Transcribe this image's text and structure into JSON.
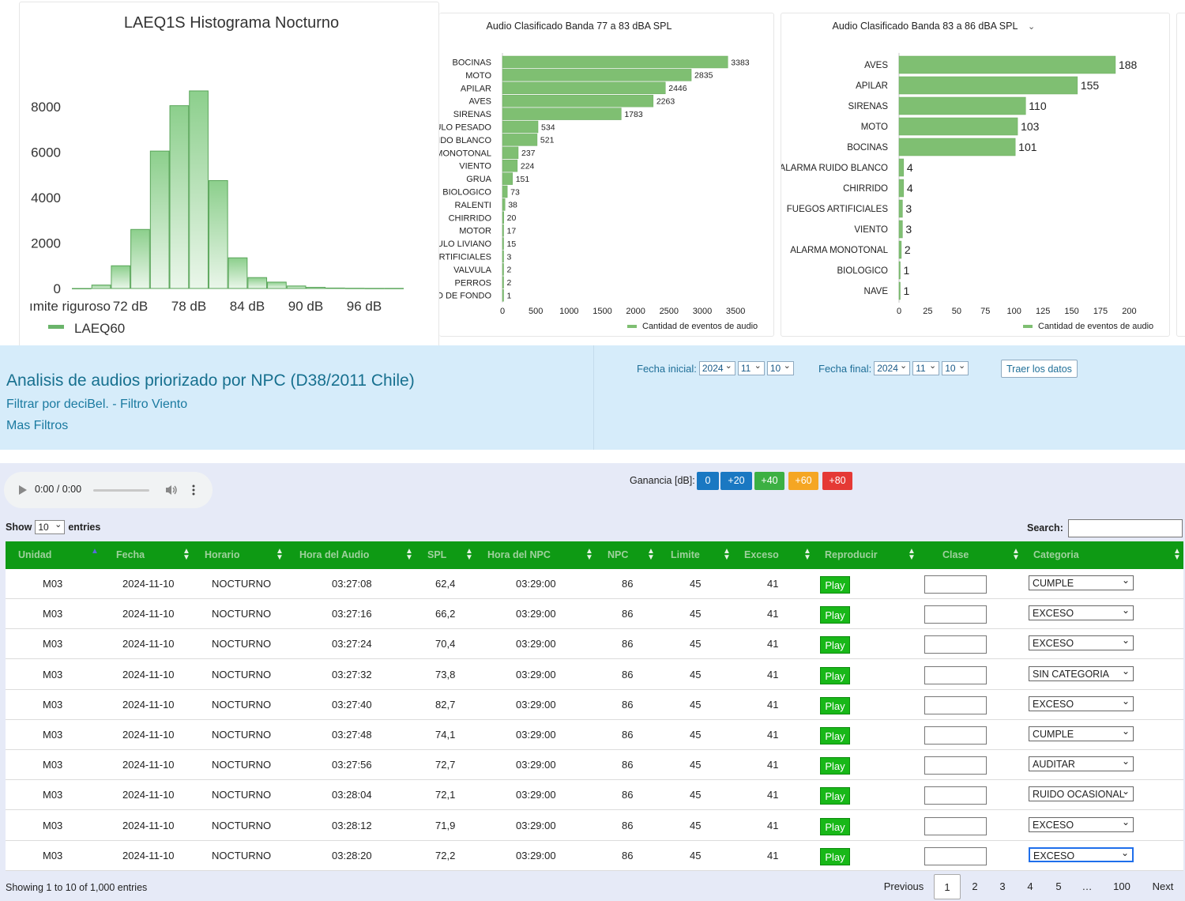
{
  "histogram": {
    "title": "LAEQ1S Histograma Nocturno",
    "legend": "LAEQ60",
    "legend_color": "#6ab46a",
    "y_ticks": [
      "0",
      "2000",
      "4000",
      "6000",
      "8000"
    ],
    "x_ticks": [
      "ımite riguroso",
      "72 dB",
      "78 dB",
      "84 dB",
      "90 dB",
      "96 dB"
    ]
  },
  "band77": {
    "title": "Audio Clasificado Banda 77 a 83 dBA SPL",
    "legend": "Cantidad de eventos de audio",
    "x_ticks": [
      "0",
      "500",
      "1000",
      "1500",
      "2000",
      "2500",
      "3000",
      "3500"
    ]
  },
  "band83": {
    "title": "Audio Clasificado Banda 83 a 86 dBA SPL",
    "legend": "Cantidad de eventos de audio",
    "x_ticks": [
      "0",
      "25",
      "50",
      "75",
      "100",
      "125",
      "150",
      "175",
      "200"
    ]
  },
  "chart_data": [
    {
      "type": "bar",
      "title": "LAEQ1S Histograma Nocturno",
      "series": [
        {
          "name": "LAEQ60",
          "values": [
            0,
            150,
            1000,
            2600,
            6050,
            8050,
            8700,
            4750,
            1350,
            480,
            280,
            110,
            50,
            20,
            10,
            5,
            5
          ]
        }
      ],
      "ylim": [
        0,
        8700
      ],
      "x_ticks": [
        "ımite riguroso",
        "72 dB",
        "78 dB",
        "84 dB",
        "90 dB",
        "96 dB"
      ]
    },
    {
      "type": "bar",
      "title": "Audio Clasificado Banda 77 a 83 dBA SPL",
      "categories": [
        "BOCINAS",
        "MOTO",
        "APILAR",
        "AVES",
        "SIRENAS",
        "ULO PESADO",
        "IIDO BLANCO",
        "MONOTONAL",
        "VIENTO",
        "GRUA",
        "BIOLOGICO",
        "RALENTI",
        "CHIRRIDO",
        "MOTOR",
        "ULO LIVIANO",
        "ARTIFICIALES",
        "VALVULA",
        "PERROS",
        "O DE FONDO"
      ],
      "values": [
        3383,
        2835,
        2446,
        2263,
        1783,
        534,
        521,
        237,
        224,
        151,
        73,
        38,
        20,
        17,
        15,
        3,
        2,
        2,
        1
      ],
      "xlim": [
        0,
        3700
      ],
      "legend": "Cantidad de eventos de audio"
    },
    {
      "type": "bar",
      "title": "Audio Clasificado Banda 83 a 86 dBA SPL",
      "categories": [
        "AVES",
        "APILAR",
        "SIRENAS",
        "MOTO",
        "BOCINAS",
        "ALARMA RUIDO BLANCO",
        "CHIRRIDO",
        "FUEGOS ARTIFICIALES",
        "VIENTO",
        "ALARMA MONOTONAL",
        "BIOLOGICO",
        "NAVE"
      ],
      "values": [
        188,
        155,
        110,
        103,
        101,
        4,
        4,
        3,
        3,
        2,
        1,
        1
      ],
      "xlim": [
        0,
        210
      ],
      "legend": "Cantidad de eventos de audio"
    }
  ],
  "info": {
    "title": "Analisis de audios priorizado por NPC (D38/2011 Chile)",
    "filter_link": "Filtrar por deciBel. - Filtro Viento",
    "more_filters": "Mas Filtros",
    "fecha_inicial_label": "Fecha inicial:",
    "fecha_final_label": "Fecha final:",
    "start": {
      "year": "2024",
      "month": "11",
      "day": "10"
    },
    "end": {
      "year": "2024",
      "month": "11",
      "day": "10"
    },
    "traer_label": "Traer los datos"
  },
  "player": {
    "time": "0:00 / 0:00"
  },
  "gain": {
    "label": "Ganancia [dB]:",
    "buttons": [
      "0",
      "+20",
      "+40",
      "+60",
      "+80"
    ],
    "colors": [
      "#1a78c2",
      "#1a78c2",
      "#3cb043",
      "#f5a623",
      "#e53935"
    ]
  },
  "table": {
    "show_label": "Show",
    "entries_value": "10",
    "entries_label": "entries",
    "search_label": "Search:",
    "columns": [
      "Unidad",
      "Fecha",
      "Horario",
      "Hora del Audio",
      "SPL",
      "Hora del NPC",
      "NPC",
      "Limite",
      "Exceso",
      "Reproducir",
      "Clase",
      "Categoria"
    ],
    "play_label": "Play",
    "rows": [
      [
        "M03",
        "2024-11-10",
        "NOCTURNO",
        "03:27:08",
        "62,4",
        "03:29:00",
        "86",
        "45",
        "41",
        "CUMPLE"
      ],
      [
        "M03",
        "2024-11-10",
        "NOCTURNO",
        "03:27:16",
        "66,2",
        "03:29:00",
        "86",
        "45",
        "41",
        "EXCESO"
      ],
      [
        "M03",
        "2024-11-10",
        "NOCTURNO",
        "03:27:24",
        "70,4",
        "03:29:00",
        "86",
        "45",
        "41",
        "EXCESO"
      ],
      [
        "M03",
        "2024-11-10",
        "NOCTURNO",
        "03:27:32",
        "73,8",
        "03:29:00",
        "86",
        "45",
        "41",
        "SIN CATEGORIA"
      ],
      [
        "M03",
        "2024-11-10",
        "NOCTURNO",
        "03:27:40",
        "82,7",
        "03:29:00",
        "86",
        "45",
        "41",
        "EXCESO"
      ],
      [
        "M03",
        "2024-11-10",
        "NOCTURNO",
        "03:27:48",
        "74,1",
        "03:29:00",
        "86",
        "45",
        "41",
        "CUMPLE"
      ],
      [
        "M03",
        "2024-11-10",
        "NOCTURNO",
        "03:27:56",
        "72,7",
        "03:29:00",
        "86",
        "45",
        "41",
        "AUDITAR"
      ],
      [
        "M03",
        "2024-11-10",
        "NOCTURNO",
        "03:28:04",
        "72,1",
        "03:29:00",
        "86",
        "45",
        "41",
        "RUIDO OCASIONAL"
      ],
      [
        "M03",
        "2024-11-10",
        "NOCTURNO",
        "03:28:12",
        "71,9",
        "03:29:00",
        "86",
        "45",
        "41",
        "EXCESO"
      ],
      [
        "M03",
        "2024-11-10",
        "NOCTURNO",
        "03:28:20",
        "72,2",
        "03:29:00",
        "86",
        "45",
        "41",
        "EXCESO"
      ]
    ],
    "footer": "Showing 1 to 10 of 1,000 entries",
    "pagination": [
      "Previous",
      "1",
      "2",
      "3",
      "4",
      "5",
      "…",
      "100",
      "Next"
    ]
  }
}
